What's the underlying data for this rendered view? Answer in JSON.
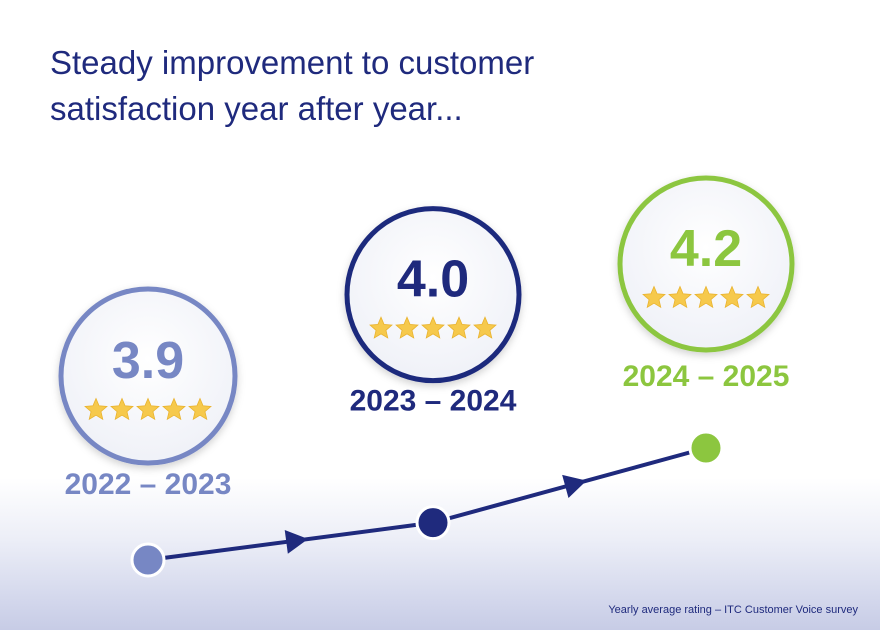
{
  "title_lines": [
    "Steady improvement to customer",
    "satisfaction year after year..."
  ],
  "footnote": "Yearly average rating – ITC Customer Voice survey",
  "colors": {
    "title": "#1f2a7d",
    "line": "#1f2a7d",
    "star": "#f6c94c",
    "series": [
      "#7787c4",
      "#1f2a7d",
      "#8cc63f"
    ]
  },
  "chart_data": {
    "type": "line",
    "categories": [
      "2022 – 2023",
      "2023 – 2024",
      "2024 – 2025"
    ],
    "values": [
      3.9,
      4.0,
      4.2
    ],
    "value_labels": [
      "3.9",
      "4.0",
      "4.2"
    ],
    "stars_per_badge": 5,
    "title": "Steady improvement to customer satisfaction year after year...",
    "xlabel": "",
    "ylabel": "",
    "grid": false,
    "legend": "none"
  }
}
